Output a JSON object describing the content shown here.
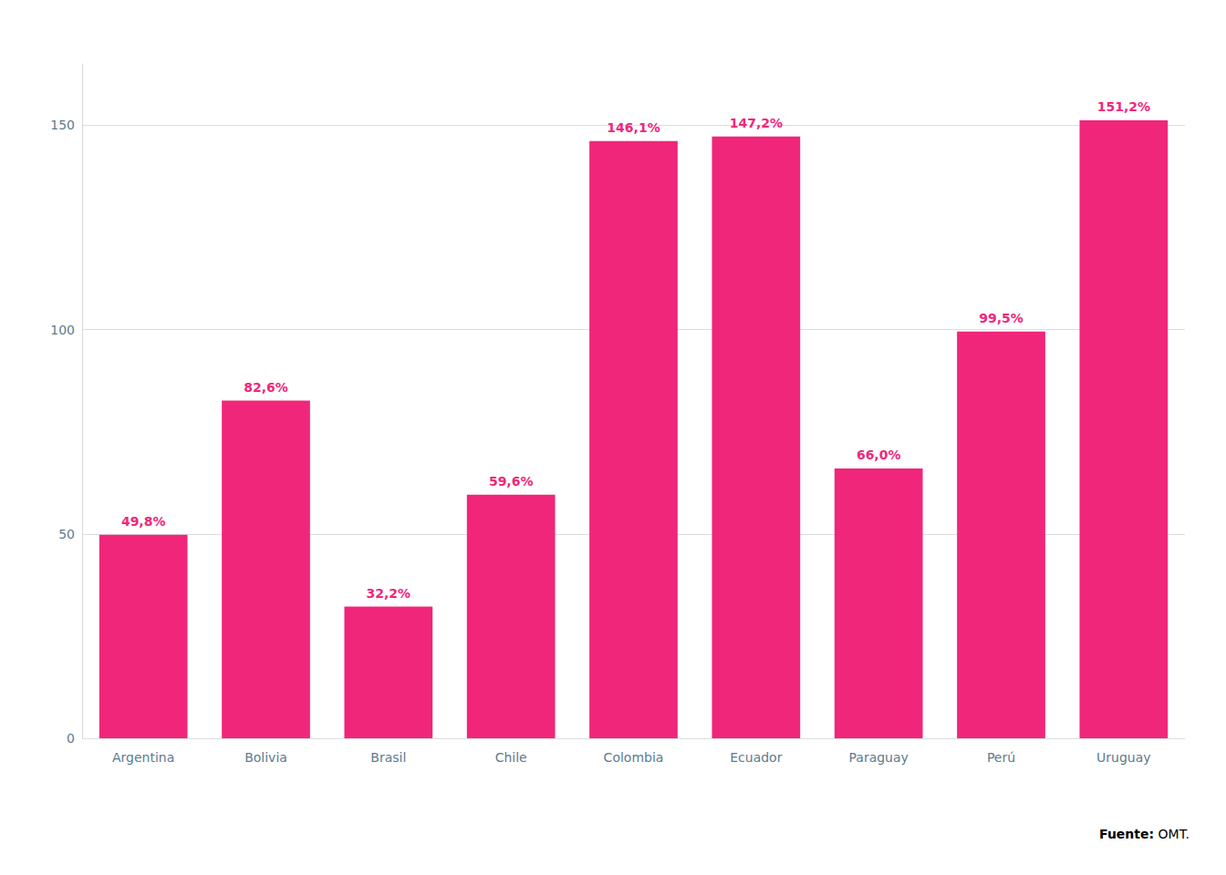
{
  "chart_data": {
    "type": "bar",
    "categories": [
      "Argentina",
      "Bolivia",
      "Brasil",
      "Chile",
      "Colombia",
      "Ecuador",
      "Paraguay",
      "Perú",
      "Uruguay"
    ],
    "values": [
      49.8,
      82.6,
      32.2,
      59.6,
      146.1,
      147.2,
      66.0,
      99.5,
      151.2
    ],
    "value_labels": [
      "49,8%",
      "82,6%",
      "32,2%",
      "59,6%",
      "146,1%",
      "147,2%",
      "66,0%",
      "99,5%",
      "151,2%"
    ],
    "color": "#F0267A",
    "ylim": [
      0,
      165
    ],
    "yticks": [
      0,
      50,
      100,
      150
    ],
    "grid": true,
    "data_labels": true,
    "annotations": [
      "Fuente: OMT."
    ]
  }
}
